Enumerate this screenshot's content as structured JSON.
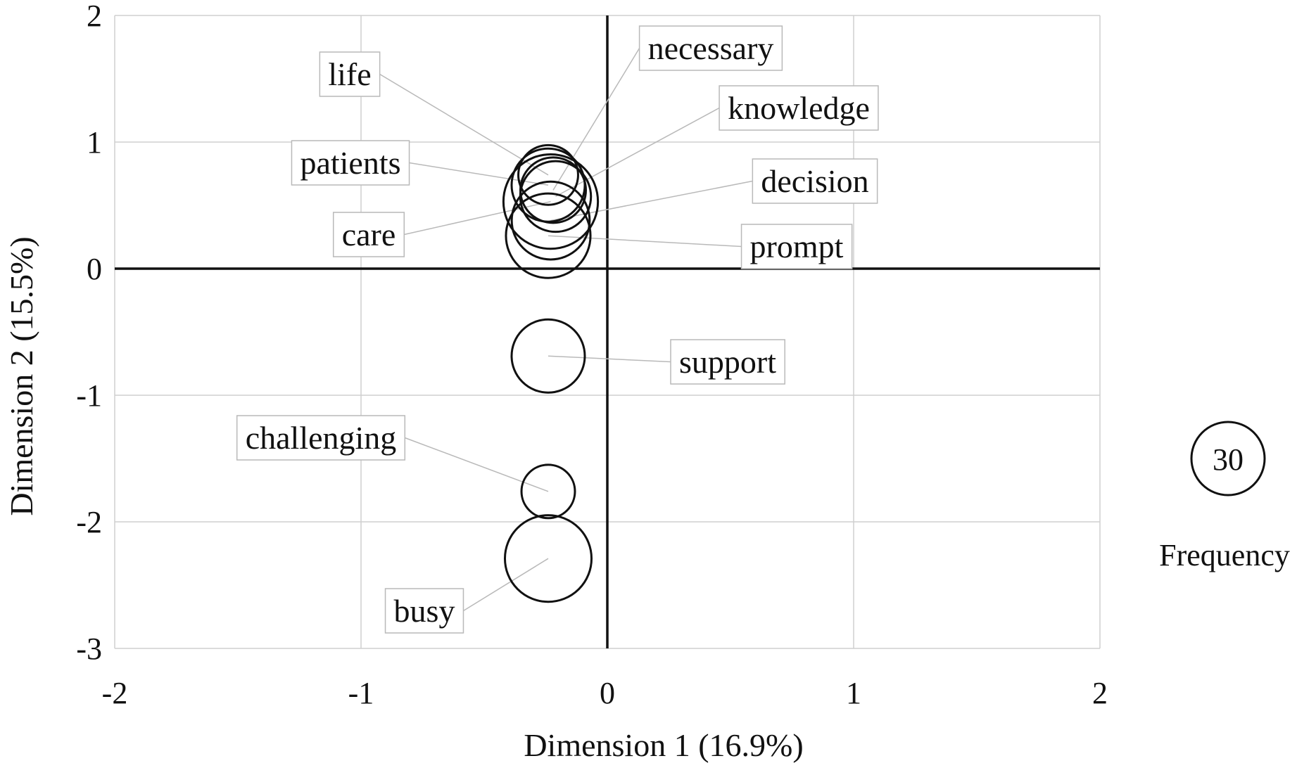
{
  "chart_data": {
    "type": "scatter",
    "xlabel": "Dimension 1 (16.9%)",
    "ylabel": "Dimension 2 (15.5%)",
    "xlim": [
      -2,
      2
    ],
    "ylim": [
      -3,
      2
    ],
    "xticks": [
      "-2",
      "-1",
      "0",
      "1",
      "2"
    ],
    "yticks": [
      "2",
      "1",
      "0",
      "-1",
      "-2",
      "-3"
    ],
    "grid": true,
    "points": [
      {
        "label": "life",
        "x": -0.24,
        "y": 0.74,
        "frequency": 20
      },
      {
        "label": "necessary",
        "x": -0.22,
        "y": 0.62,
        "frequency": 24
      },
      {
        "label": "knowledge",
        "x": -0.21,
        "y": 0.57,
        "frequency": 28
      },
      {
        "label": "patients",
        "x": -0.24,
        "y": 0.66,
        "frequency": 30
      },
      {
        "label": "care",
        "x": -0.23,
        "y": 0.53,
        "frequency": 50
      },
      {
        "label": "decision",
        "x": -0.23,
        "y": 0.38,
        "frequency": 34
      },
      {
        "label": "prompt",
        "x": -0.24,
        "y": 0.26,
        "frequency": 40
      },
      {
        "label": "support",
        "x": -0.24,
        "y": -0.69,
        "frequency": 30
      },
      {
        "label": "challenging",
        "x": -0.24,
        "y": -1.76,
        "frequency": 16
      },
      {
        "label": "busy",
        "x": -0.24,
        "y": -2.29,
        "frequency": 42
      }
    ],
    "legend": {
      "value": "30",
      "title": "Frequency",
      "position": "right"
    }
  }
}
